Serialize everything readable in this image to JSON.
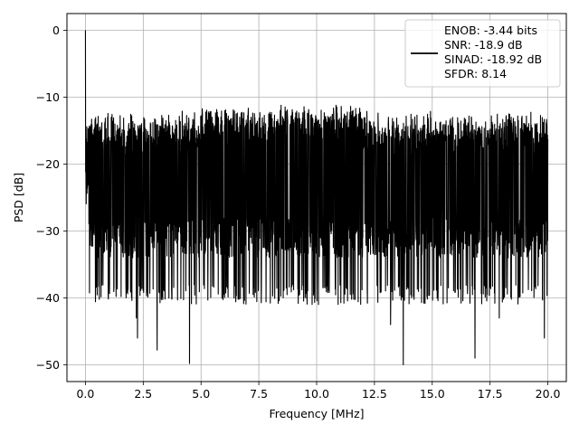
{
  "chart_data": {
    "type": "line",
    "xlabel": "Frequency [MHz]",
    "ylabel": "PSD [dB]",
    "xlim": [
      -0.8,
      20.8
    ],
    "ylim": [
      -52.5,
      2.5
    ],
    "x_ticks": [
      0.0,
      2.5,
      5.0,
      7.5,
      10.0,
      12.5,
      15.0,
      17.5,
      20.0
    ],
    "x_tick_labels": [
      "0.0",
      "2.5",
      "5.0",
      "7.5",
      "10.0",
      "12.5",
      "15.0",
      "17.5",
      "20.0"
    ],
    "y_ticks": [
      0,
      -10,
      -20,
      -30,
      -40,
      -50
    ],
    "y_tick_labels": [
      "0",
      "−10",
      "−20",
      "−30",
      "−40",
      "−50"
    ],
    "grid": true,
    "legend_position": "top-right",
    "series": [
      {
        "color": "#000000",
        "summary": {
          "x_range": [
            0,
            20
          ],
          "peak": {
            "x": 0.0,
            "y": 0.0
          },
          "noise_floor_mean_db": -21,
          "noise_upper_envelope_db": -12,
          "noise_lower_excursions_db": -38,
          "deep_nulls": [
            {
              "x": 2.2,
              "y": -43
            },
            {
              "x": 2.25,
              "y": -46
            },
            {
              "x": 3.1,
              "y": -47.8
            },
            {
              "x": 4.5,
              "y": -49.8
            },
            {
              "x": 13.2,
              "y": -44
            },
            {
              "x": 13.75,
              "y": -50
            },
            {
              "x": 16.85,
              "y": -49
            },
            {
              "x": 17.9,
              "y": -43
            },
            {
              "x": 19.85,
              "y": -46
            }
          ]
        }
      }
    ],
    "legend_lines": [
      "ENOB: -3.44 bits",
      "SNR: -18.9 dB",
      "SINAD: -18.92 dB",
      "SFDR: 8.14"
    ]
  }
}
